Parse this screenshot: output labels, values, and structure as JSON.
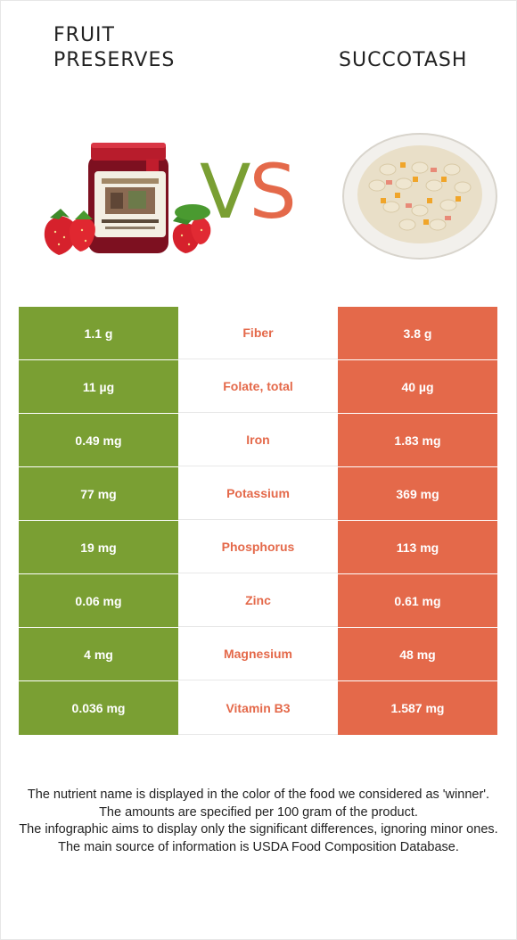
{
  "colors": {
    "left_food": "#7a9f33",
    "right_food": "#e4694a"
  },
  "header": {
    "left_food": "Fruit preserves",
    "right_food": "Succotash",
    "vs_v": "V",
    "vs_s": "S"
  },
  "images": {
    "left": "strawberry-jam-jar",
    "right": "succotash-plate"
  },
  "rows": [
    {
      "left": "1.1 g",
      "nutrient": "Fiber",
      "right": "3.8 g"
    },
    {
      "left": "11 µg",
      "nutrient": "Folate, total",
      "right": "40 µg"
    },
    {
      "left": "0.49 mg",
      "nutrient": "Iron",
      "right": "1.83 mg"
    },
    {
      "left": "77 mg",
      "nutrient": "Potassium",
      "right": "369 mg"
    },
    {
      "left": "19 mg",
      "nutrient": "Phosphorus",
      "right": "113 mg"
    },
    {
      "left": "0.06 mg",
      "nutrient": "Zinc",
      "right": "0.61 mg"
    },
    {
      "left": "4 mg",
      "nutrient": "Magnesium",
      "right": "48 mg"
    },
    {
      "left": "0.036 mg",
      "nutrient": "Vitamin B3",
      "right": "1.587 mg"
    }
  ],
  "footer": {
    "line1": "The nutrient name is displayed in the color of the food we considered as 'winner'.",
    "line2": "The amounts are specified per 100 gram of the product.",
    "line3": "The infographic aims to display only the significant differences, ignoring minor ones.",
    "line4": "The main source of information is USDA Food Composition Database."
  }
}
